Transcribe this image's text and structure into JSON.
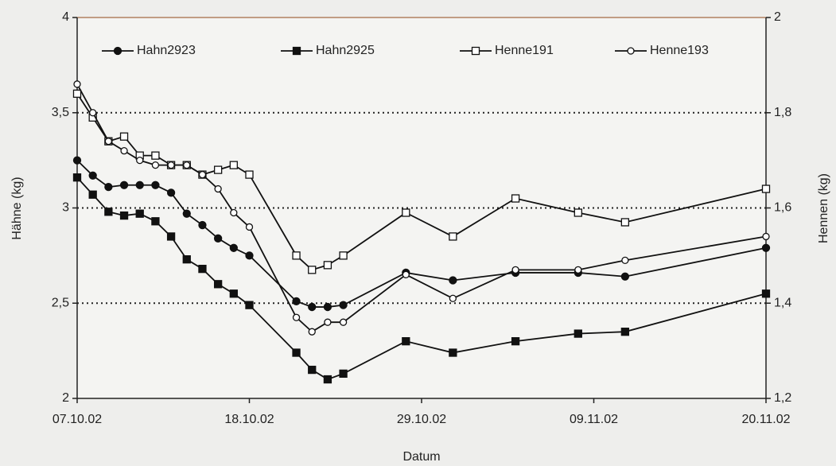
{
  "chart_data": {
    "type": "line",
    "xlabel": "Datum",
    "ylabel": "Hähne (kg)",
    "y2label": "Hennen (kg)",
    "xlim": [
      "2002-10-07",
      "2002-11-20"
    ],
    "xticks": [
      {
        "value": "2002-10-07",
        "label": "07.10.02"
      },
      {
        "value": "2002-10-18",
        "label": "18.10.02"
      },
      {
        "value": "2002-10-29",
        "label": "29.10.02"
      },
      {
        "value": "2002-11-09",
        "label": "09.11.02"
      },
      {
        "value": "2002-11-20",
        "label": "20.11.02"
      }
    ],
    "ylim": [
      2,
      4
    ],
    "yticks": [
      2,
      {
        "value": 2.5,
        "label": "2,5"
      },
      3,
      {
        "value": 3.5,
        "label": "3,5"
      },
      4
    ],
    "y2lim": [
      1.2,
      2
    ],
    "y2ticks": [
      {
        "value": 1.2,
        "label": "1,2"
      },
      {
        "value": 1.4,
        "label": "1,4"
      },
      {
        "value": 1.6,
        "label": "1,6"
      },
      {
        "value": 1.8,
        "label": "1,8"
      },
      2
    ],
    "grid": true,
    "legend": "top",
    "series": [
      {
        "name": "Hahn2923",
        "color": "#111111",
        "marker": "circle-filled",
        "x": [
          "2002-10-07",
          "2002-10-08",
          "2002-10-09",
          "2002-10-10",
          "2002-10-11",
          "2002-10-12",
          "2002-10-13",
          "2002-10-14",
          "2002-10-15",
          "2002-10-16",
          "2002-10-17",
          "2002-10-18",
          "2002-10-21",
          "2002-10-22",
          "2002-10-23",
          "2002-10-24",
          "2002-10-28",
          "2002-10-31",
          "2002-11-04",
          "2002-11-08",
          "2002-11-11",
          "2002-11-20"
        ],
        "values": [
          3.25,
          3.17,
          3.11,
          3.12,
          3.12,
          3.12,
          3.08,
          2.97,
          2.91,
          2.84,
          2.79,
          2.75,
          2.51,
          2.48,
          2.48,
          2.49,
          2.66,
          2.62,
          2.66,
          2.66,
          2.64,
          2.79
        ]
      },
      {
        "name": "Hahn2925",
        "color": "#111111",
        "marker": "square-filled",
        "x": [
          "2002-10-07",
          "2002-10-08",
          "2002-10-09",
          "2002-10-10",
          "2002-10-11",
          "2002-10-12",
          "2002-10-13",
          "2002-10-14",
          "2002-10-15",
          "2002-10-16",
          "2002-10-17",
          "2002-10-18",
          "2002-10-21",
          "2002-10-22",
          "2002-10-23",
          "2002-10-24",
          "2002-10-28",
          "2002-10-31",
          "2002-11-04",
          "2002-11-08",
          "2002-11-11",
          "2002-11-20"
        ],
        "values": [
          3.16,
          3.07,
          2.98,
          2.96,
          2.97,
          2.93,
          2.85,
          2.73,
          2.68,
          2.6,
          2.55,
          2.49,
          2.24,
          2.15,
          2.1,
          2.13,
          2.3,
          2.24,
          2.3,
          2.34,
          2.35,
          2.55
        ]
      },
      {
        "name": "Henne191",
        "color": "#111111",
        "marker": "square-open",
        "axis": "y2",
        "x": [
          "2002-10-07",
          "2002-10-08",
          "2002-10-09",
          "2002-10-10",
          "2002-10-11",
          "2002-10-12",
          "2002-10-13",
          "2002-10-14",
          "2002-10-15",
          "2002-10-16",
          "2002-10-17",
          "2002-10-18",
          "2002-10-21",
          "2002-10-22",
          "2002-10-23",
          "2002-10-24",
          "2002-10-28",
          "2002-10-31",
          "2002-11-04",
          "2002-11-08",
          "2002-11-11",
          "2002-11-20"
        ],
        "values": [
          1.84,
          1.79,
          1.74,
          1.75,
          1.71,
          1.71,
          1.69,
          1.69,
          1.67,
          1.68,
          1.69,
          1.67,
          1.5,
          1.47,
          1.48,
          1.5,
          1.59,
          1.54,
          1.62,
          1.59,
          1.57,
          1.64
        ]
      },
      {
        "name": "Henne193",
        "color": "#111111",
        "marker": "circle-open",
        "axis": "y2",
        "x": [
          "2002-10-07",
          "2002-10-08",
          "2002-10-09",
          "2002-10-10",
          "2002-10-11",
          "2002-10-12",
          "2002-10-13",
          "2002-10-14",
          "2002-10-15",
          "2002-10-16",
          "2002-10-17",
          "2002-10-18",
          "2002-10-21",
          "2002-10-22",
          "2002-10-23",
          "2002-10-24",
          "2002-10-28",
          "2002-10-31",
          "2002-11-04",
          "2002-11-08",
          "2002-11-11",
          "2002-11-20"
        ],
        "values": [
          1.86,
          1.8,
          1.74,
          1.72,
          1.7,
          1.69,
          1.69,
          1.69,
          1.67,
          1.64,
          1.59,
          1.56,
          1.37,
          1.34,
          1.36,
          1.36,
          1.46,
          1.41,
          1.47,
          1.47,
          1.49,
          1.54
        ]
      }
    ]
  }
}
